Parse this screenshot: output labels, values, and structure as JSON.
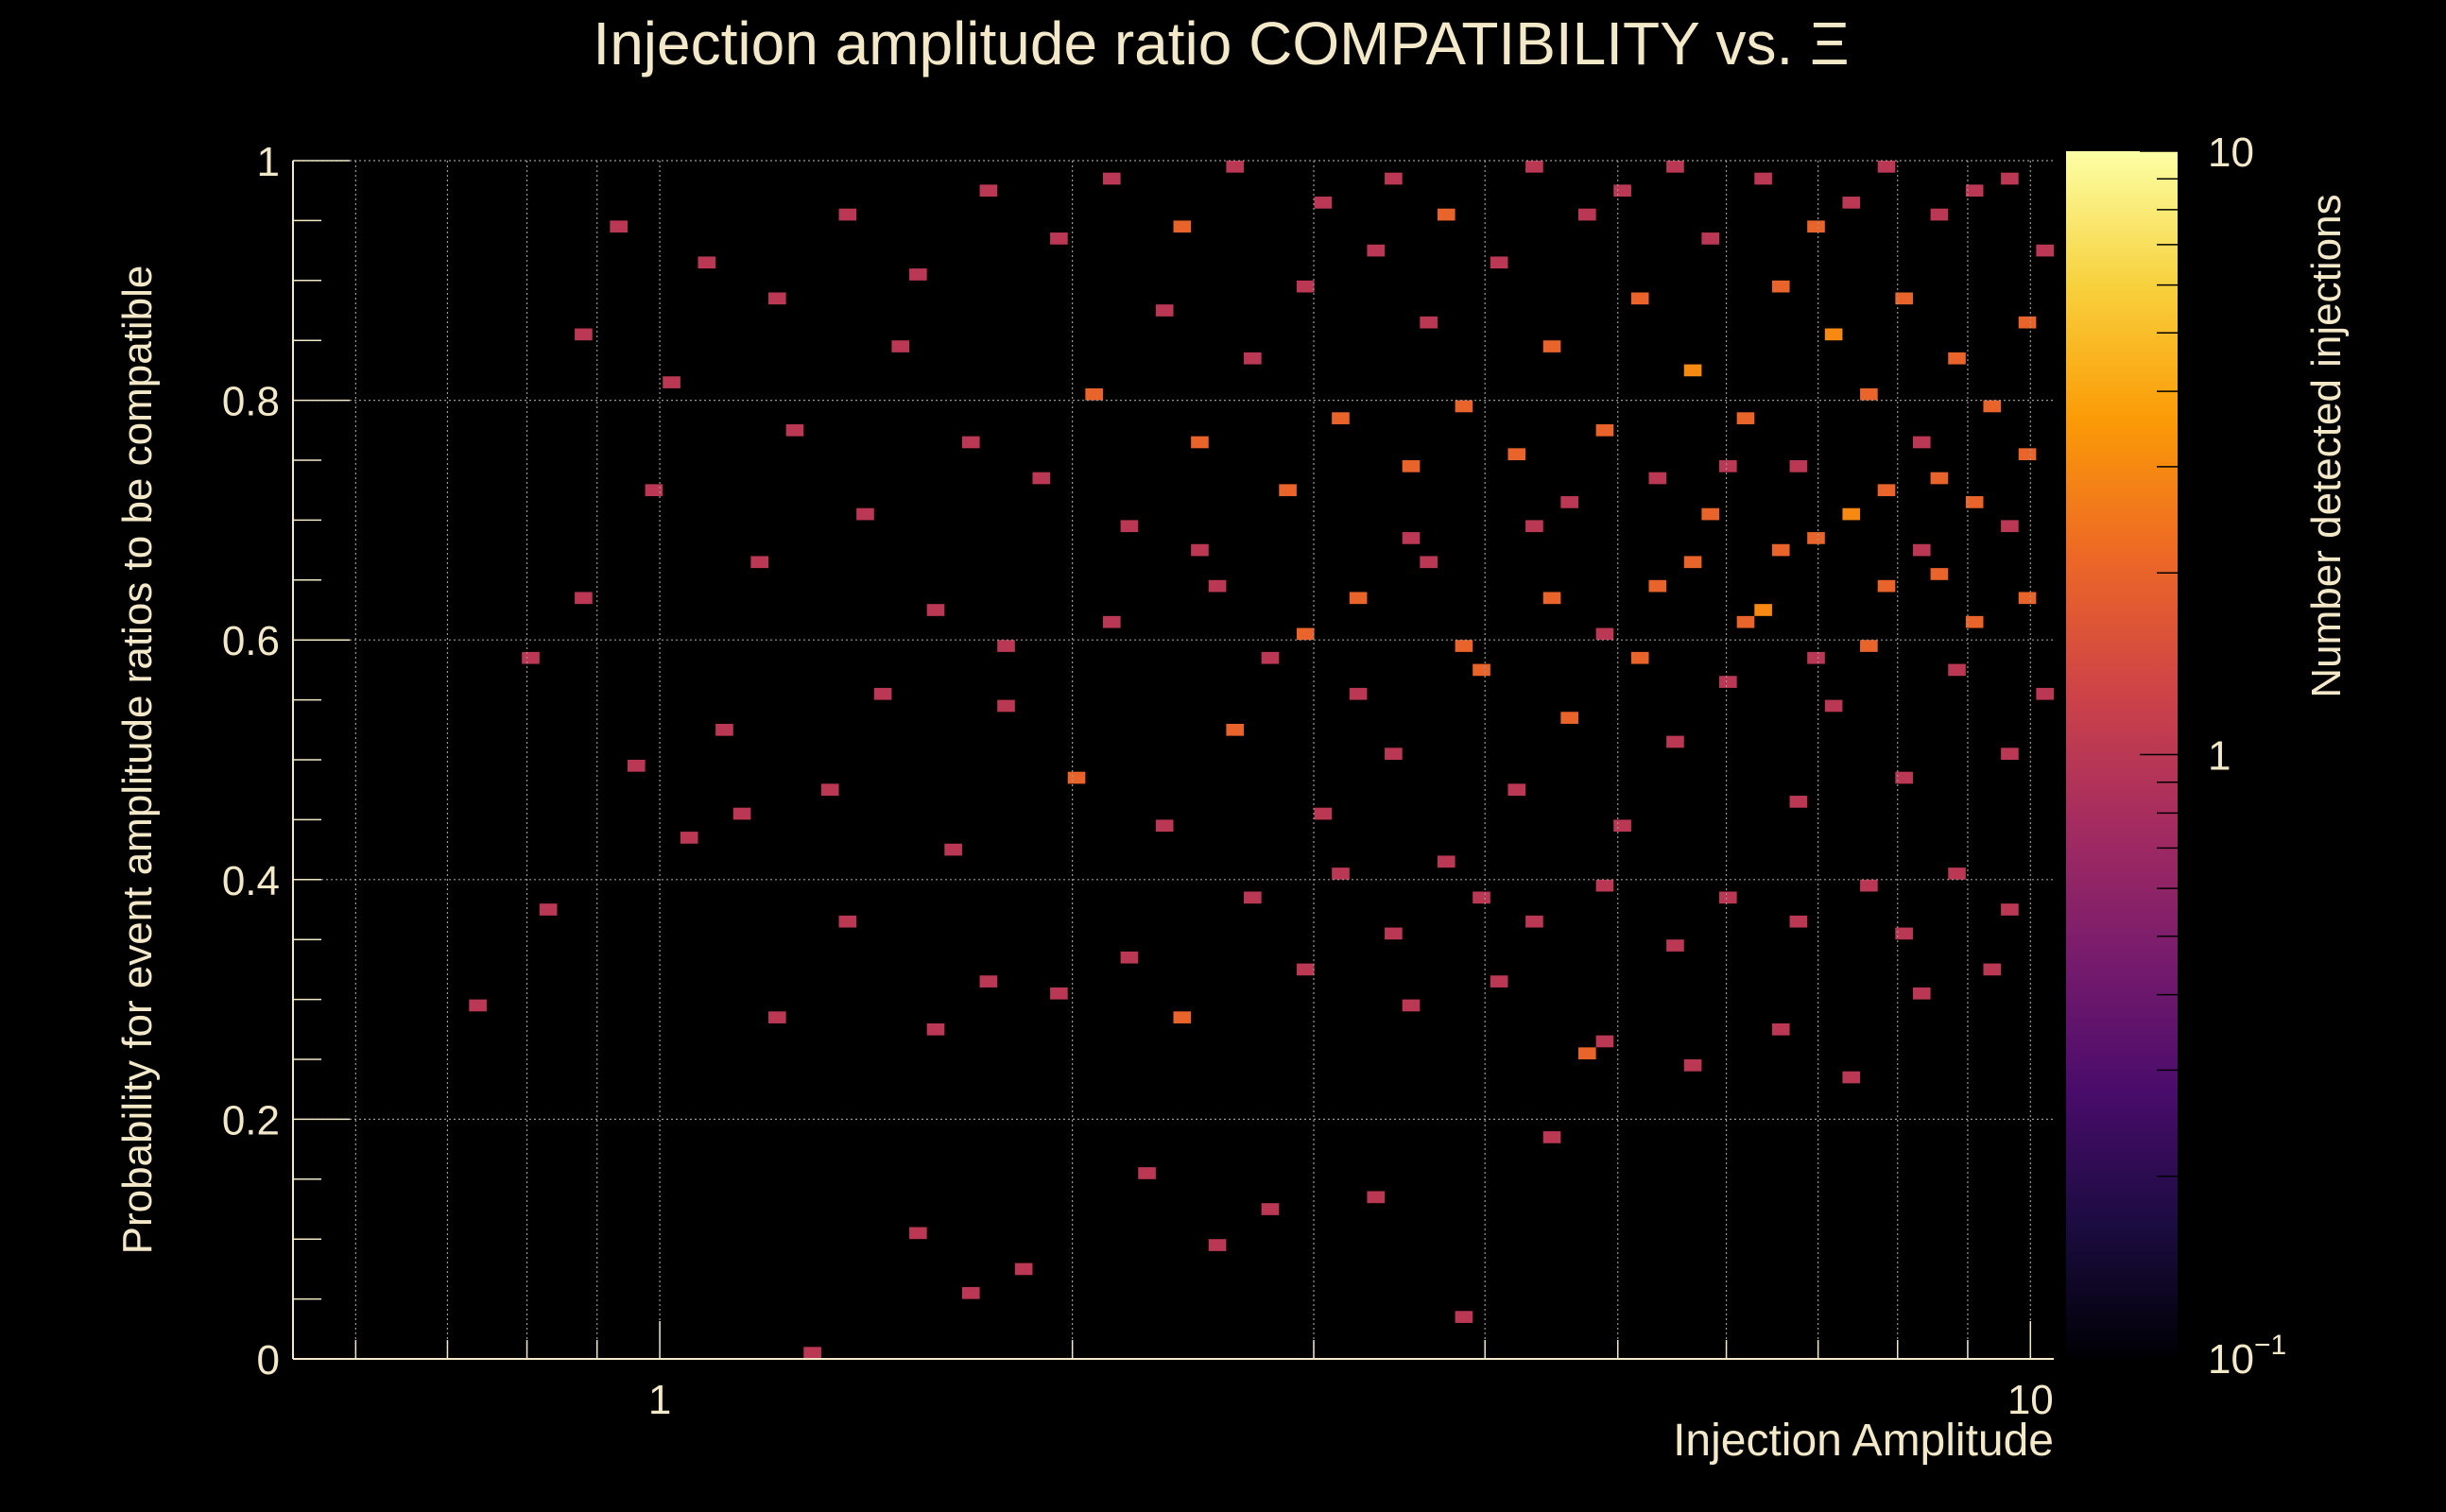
{
  "chart_data": {
    "type": "heatmap",
    "title": "Injection amplitude ratio COMPATIBILITY vs.  Ξ",
    "xlabel": "Injection Amplitude",
    "ylabel": "Probability for event amplitude ratios to be compatible",
    "zlabel": "Number detected injections",
    "x_scale": "log",
    "y_scale": "linear",
    "z_scale": "log",
    "xlim": [
      0.54,
      10.4
    ],
    "ylim": [
      0,
      1
    ],
    "zlim": [
      0.1,
      10
    ],
    "x_ticks": [
      {
        "value": 1,
        "label": "1"
      },
      {
        "value": 10,
        "label": "10"
      }
    ],
    "y_ticks": [
      {
        "value": 0,
        "label": "0"
      },
      {
        "value": 0.2,
        "label": "0.2"
      },
      {
        "value": 0.4,
        "label": "0.4"
      },
      {
        "value": 0.6,
        "label": "0.6"
      },
      {
        "value": 0.8,
        "label": "0.8"
      },
      {
        "value": 1,
        "label": "1"
      }
    ],
    "z_ticks": [
      {
        "value": 0.1,
        "label": "10",
        "exp": "−1"
      },
      {
        "value": 1,
        "label": "1",
        "exp": ""
      },
      {
        "value": 10,
        "label": "10",
        "exp": ""
      }
    ],
    "grid": true,
    "background": "#000000",
    "text_color": "#f3e8c8",
    "colormap": [
      "#000004",
      "#1b0c41",
      "#4a0c6b",
      "#781c6d",
      "#a52c60",
      "#cf4446",
      "#ed6925",
      "#fb9b06",
      "#f7d13d",
      "#fcffa4"
    ],
    "bin_grid": {
      "x_bins": 100,
      "y_bins": 100,
      "x_range": [
        0.54,
        10.4
      ],
      "y_range": [
        0,
        1
      ]
    },
    "note_cells": "cells: [x_bin_index, y_bin_index, count]",
    "cells": [
      [
        29,
        0,
        1
      ],
      [
        35,
        10,
        1
      ],
      [
        38,
        5,
        1
      ],
      [
        41,
        7,
        1
      ],
      [
        48,
        15,
        1
      ],
      [
        52,
        9,
        1
      ],
      [
        55,
        12,
        1
      ],
      [
        61,
        13,
        1
      ],
      [
        66,
        3,
        1
      ],
      [
        71,
        18,
        1
      ],
      [
        73,
        25,
        2
      ],
      [
        22,
        43,
        1
      ],
      [
        25,
        45,
        1
      ],
      [
        27,
        28,
        1
      ],
      [
        31,
        36,
        1
      ],
      [
        36,
        27,
        1
      ],
      [
        39,
        31,
        1
      ],
      [
        43,
        30,
        1
      ],
      [
        47,
        33,
        1
      ],
      [
        50,
        28,
        2
      ],
      [
        57,
        32,
        1
      ],
      [
        63,
        29,
        1
      ],
      [
        68,
        31,
        1
      ],
      [
        74,
        26,
        1
      ],
      [
        79,
        24,
        1
      ],
      [
        84,
        27,
        1
      ],
      [
        88,
        23,
        1
      ],
      [
        92,
        30,
        1
      ],
      [
        96,
        32,
        1
      ],
      [
        10,
        29,
        1
      ],
      [
        14,
        37,
        1
      ],
      [
        19,
        49,
        1
      ],
      [
        24,
        52,
        1
      ],
      [
        30,
        47,
        1
      ],
      [
        33,
        55,
        1
      ],
      [
        37,
        42,
        1
      ],
      [
        40,
        59,
        1
      ],
      [
        44,
        48,
        2
      ],
      [
        46,
        61,
        1
      ],
      [
        49,
        44,
        1
      ],
      [
        51,
        67,
        1
      ],
      [
        53,
        52,
        2
      ],
      [
        55,
        58,
        1
      ],
      [
        58,
        45,
        1
      ],
      [
        60,
        63,
        2
      ],
      [
        62,
        50,
        1
      ],
      [
        64,
        66,
        1
      ],
      [
        65,
        41,
        1
      ],
      [
        67,
        57,
        2
      ],
      [
        69,
        47,
        1
      ],
      [
        70,
        69,
        1
      ],
      [
        72,
        53,
        2
      ],
      [
        74,
        60,
        1
      ],
      [
        75,
        44,
        1
      ],
      [
        77,
        64,
        2
      ],
      [
        78,
        51,
        1
      ],
      [
        80,
        70,
        2
      ],
      [
        81,
        56,
        1
      ],
      [
        83,
        62,
        3
      ],
      [
        85,
        46,
        1
      ],
      [
        86,
        68,
        2
      ],
      [
        87,
        54,
        1
      ],
      [
        89,
        59,
        2
      ],
      [
        90,
        72,
        2
      ],
      [
        91,
        48,
        1
      ],
      [
        93,
        65,
        2
      ],
      [
        94,
        57,
        1
      ],
      [
        95,
        71,
        2
      ],
      [
        97,
        50,
        1
      ],
      [
        98,
        63,
        2
      ],
      [
        99,
        55,
        1
      ],
      [
        13,
        58,
        1
      ],
      [
        16,
        63,
        1
      ],
      [
        20,
        72,
        1
      ],
      [
        21,
        81,
        1
      ],
      [
        26,
        66,
        1
      ],
      [
        28,
        77,
        1
      ],
      [
        32,
        70,
        1
      ],
      [
        34,
        84,
        1
      ],
      [
        36,
        62,
        1
      ],
      [
        38,
        76,
        1
      ],
      [
        42,
        73,
        1
      ],
      [
        45,
        80,
        2
      ],
      [
        47,
        69,
        1
      ],
      [
        49,
        87,
        1
      ],
      [
        51,
        76,
        2
      ],
      [
        54,
        83,
        1
      ],
      [
        56,
        72,
        2
      ],
      [
        57,
        89,
        1
      ],
      [
        59,
        78,
        2
      ],
      [
        61,
        92,
        1
      ],
      [
        63,
        74,
        2
      ],
      [
        64,
        86,
        1
      ],
      [
        66,
        79,
        2
      ],
      [
        68,
        91,
        1
      ],
      [
        69,
        75,
        2
      ],
      [
        71,
        84,
        2
      ],
      [
        73,
        95,
        1
      ],
      [
        74,
        77,
        2
      ],
      [
        76,
        88,
        2
      ],
      [
        77,
        73,
        1
      ],
      [
        79,
        82,
        3
      ],
      [
        80,
        93,
        1
      ],
      [
        82,
        78,
        2
      ],
      [
        84,
        89,
        2
      ],
      [
        85,
        74,
        1
      ],
      [
        87,
        85,
        3
      ],
      [
        88,
        96,
        1
      ],
      [
        89,
        80,
        2
      ],
      [
        91,
        88,
        2
      ],
      [
        92,
        76,
        1
      ],
      [
        94,
        83,
        2
      ],
      [
        95,
        97,
        1
      ],
      [
        96,
        79,
        2
      ],
      [
        98,
        86,
        2
      ],
      [
        99,
        92,
        1
      ],
      [
        16,
        85,
        1
      ],
      [
        18,
        94,
        1
      ],
      [
        23,
        91,
        1
      ],
      [
        27,
        88,
        1
      ],
      [
        31,
        95,
        1
      ],
      [
        35,
        90,
        1
      ],
      [
        39,
        97,
        1
      ],
      [
        43,
        93,
        1
      ],
      [
        46,
        98,
        1
      ],
      [
        50,
        94,
        2
      ],
      [
        53,
        99,
        1
      ],
      [
        58,
        96,
        1
      ],
      [
        62,
        98,
        1
      ],
      [
        65,
        95,
        2
      ],
      [
        70,
        99,
        1
      ],
      [
        75,
        97,
        1
      ],
      [
        78,
        99,
        1
      ],
      [
        83,
        98,
        1
      ],
      [
        86,
        94,
        2
      ],
      [
        90,
        99,
        1
      ],
      [
        93,
        95,
        1
      ],
      [
        97,
        98,
        1
      ],
      [
        40,
        54,
        1
      ],
      [
        52,
        64,
        1
      ],
      [
        57,
        60,
        2
      ],
      [
        60,
        55,
        1
      ],
      [
        63,
        68,
        1
      ],
      [
        66,
        59,
        2
      ],
      [
        71,
        63,
        2
      ],
      [
        72,
        71,
        1
      ],
      [
        76,
        58,
        2
      ],
      [
        79,
        66,
        2
      ],
      [
        81,
        74,
        1
      ],
      [
        82,
        61,
        2
      ],
      [
        84,
        67,
        2
      ],
      [
        86,
        58,
        1
      ],
      [
        88,
        70,
        3
      ],
      [
        90,
        64,
        2
      ],
      [
        92,
        67,
        1
      ],
      [
        93,
        73,
        2
      ],
      [
        95,
        61,
        2
      ],
      [
        97,
        69,
        1
      ],
      [
        98,
        75,
        2
      ],
      [
        54,
        38,
        1
      ],
      [
        59,
        40,
        1
      ],
      [
        62,
        35,
        1
      ],
      [
        67,
        38,
        1
      ],
      [
        70,
        36,
        1
      ],
      [
        74,
        39,
        1
      ],
      [
        78,
        34,
        1
      ],
      [
        81,
        38,
        1
      ],
      [
        85,
        36,
        1
      ],
      [
        89,
        39,
        1
      ],
      [
        91,
        35,
        1
      ],
      [
        94,
        40,
        1
      ],
      [
        97,
        37,
        1
      ]
    ]
  }
}
